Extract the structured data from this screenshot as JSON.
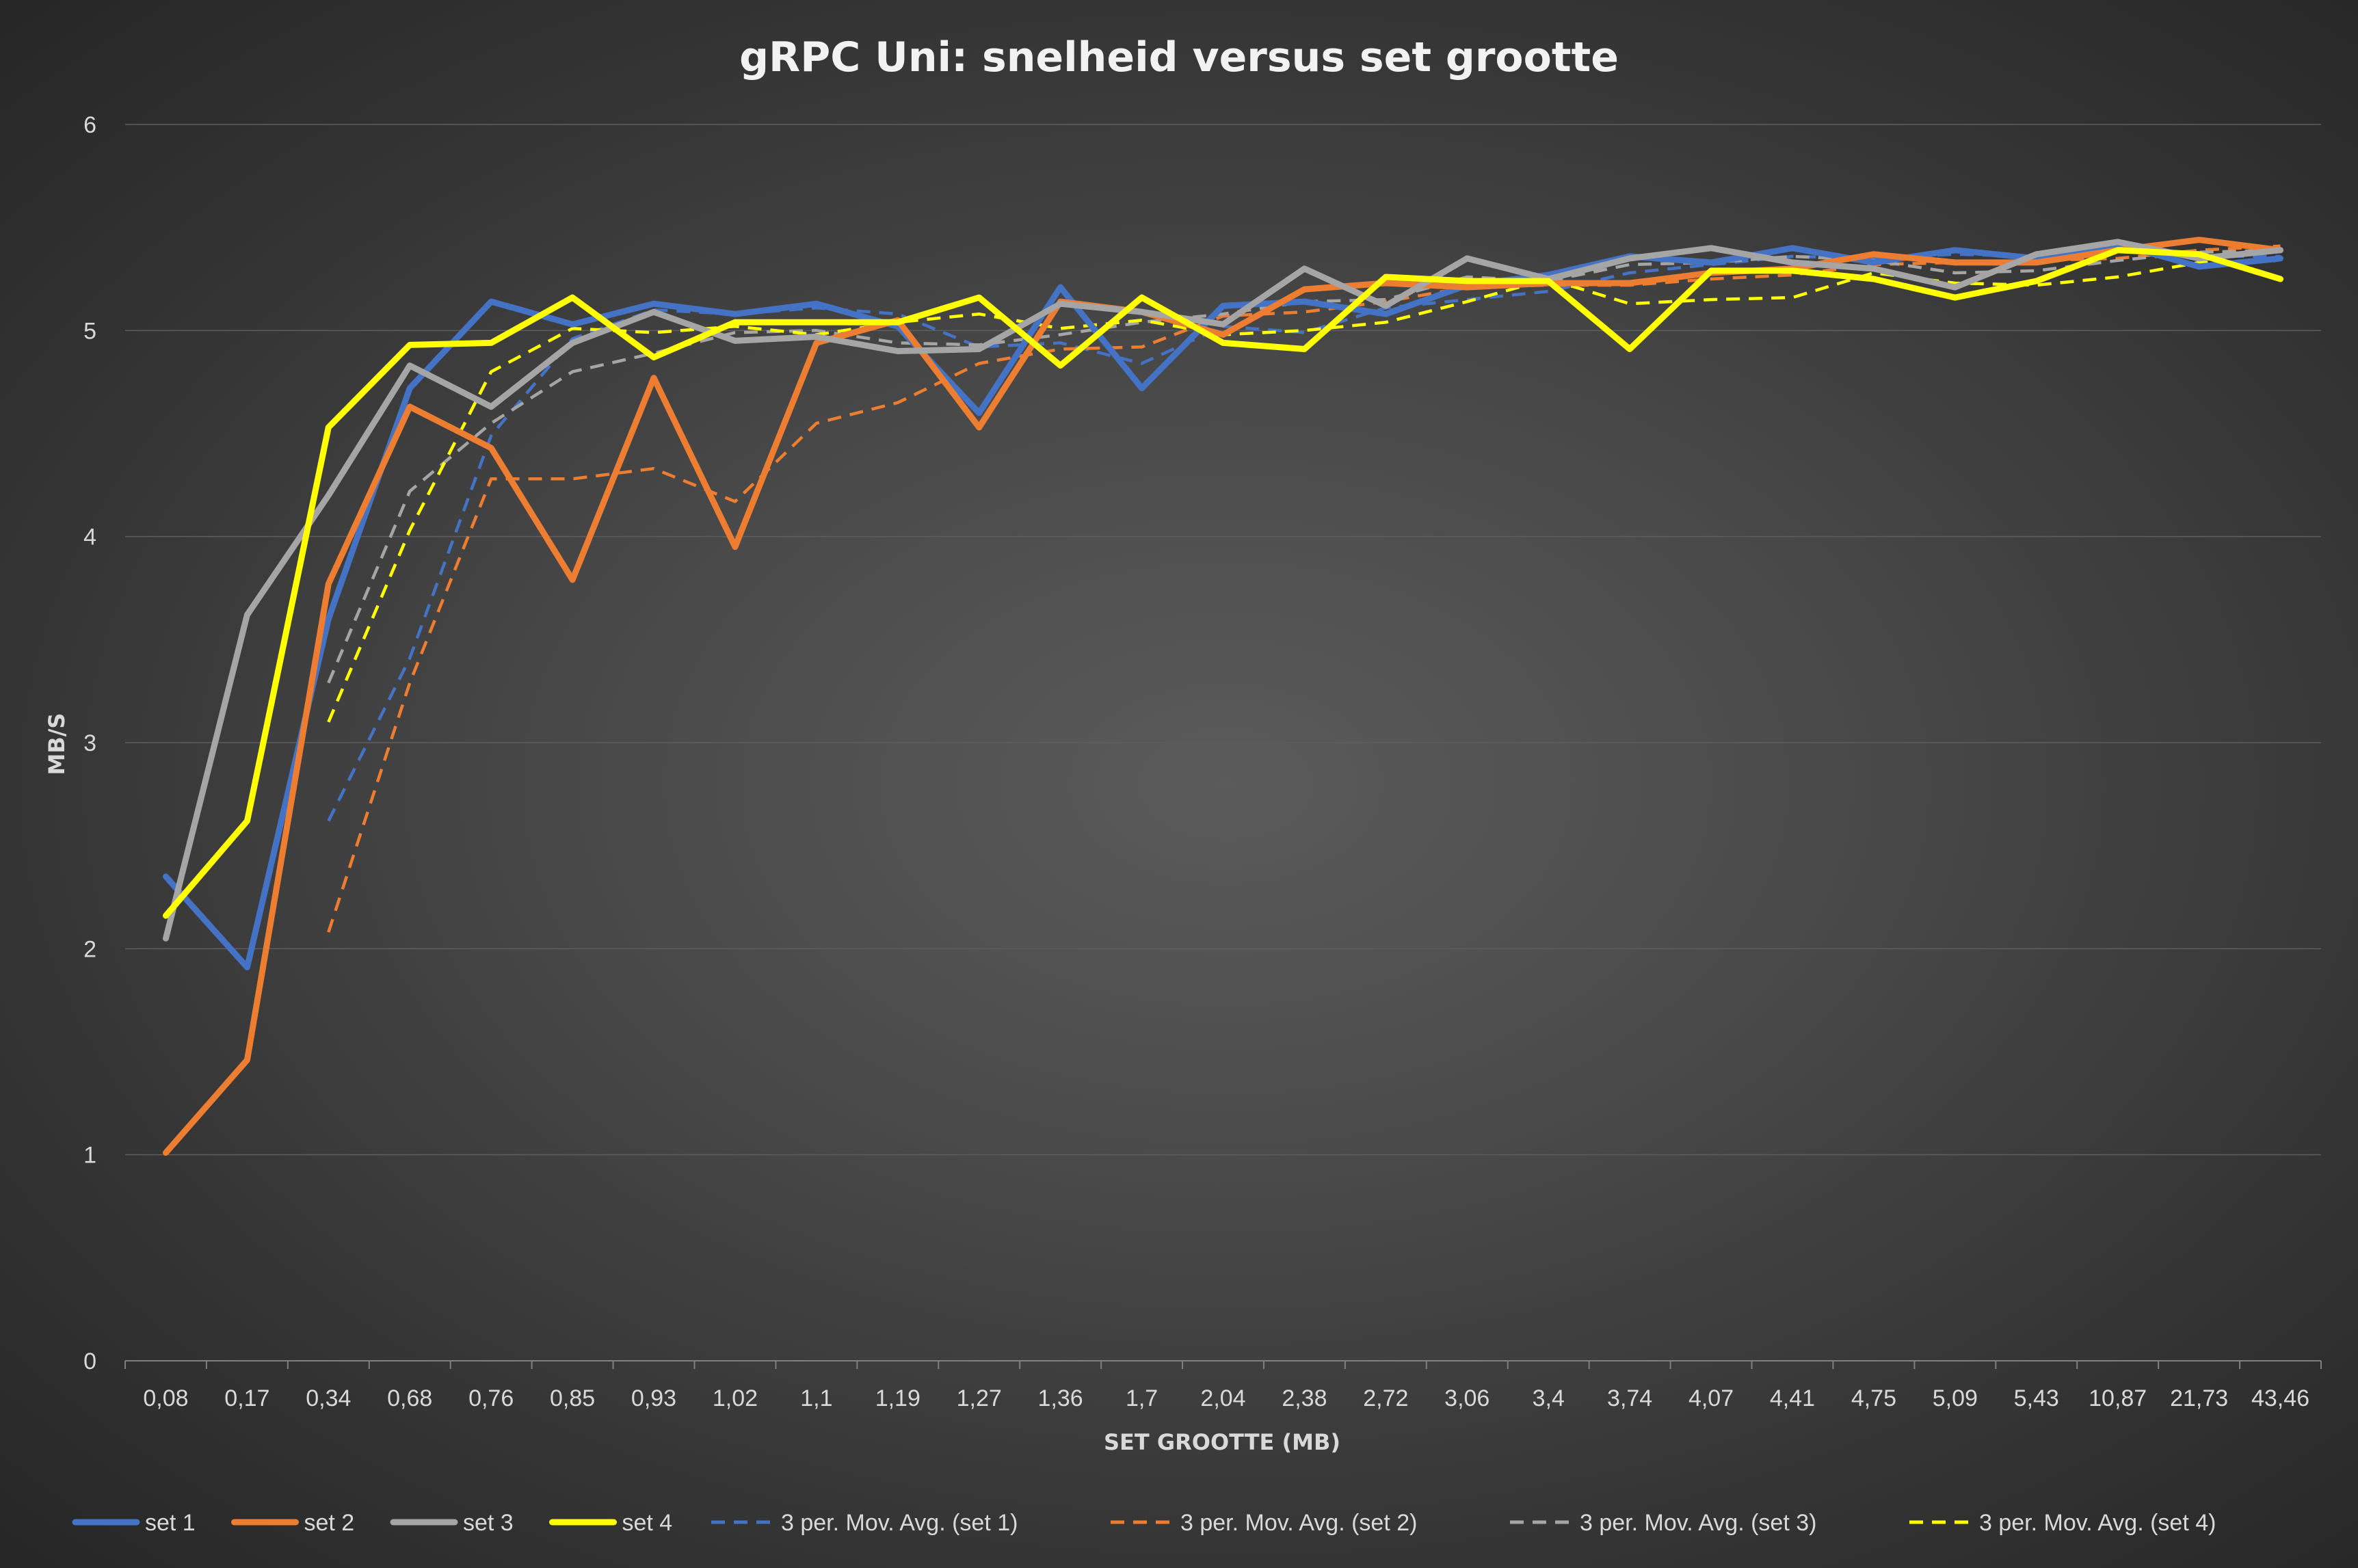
{
  "chart_data": {
    "type": "line",
    "title": "gRPC Uni: snelheid versus set grootte",
    "xlabel": "SET GROOTTE (MB)",
    "ylabel": "MB/S",
    "ylim": [
      0,
      6
    ],
    "yticks": [
      0,
      1,
      2,
      3,
      4,
      5,
      6
    ],
    "grid": true,
    "legend_position": "bottom",
    "categories": [
      "0,08",
      "0,17",
      "0,34",
      "0,68",
      "0,76",
      "0,85",
      "0,93",
      "1,02",
      "1,1",
      "1,19",
      "1,27",
      "1,36",
      "1,7",
      "2,04",
      "2,38",
      "2,72",
      "3,06",
      "3,4",
      "3,74",
      "4,07",
      "4,41",
      "4,75",
      "5,09",
      "5,43",
      "10,87",
      "21,73",
      "43,46"
    ],
    "series": [
      {
        "name": "set 1",
        "color": "#4472c4",
        "style": "solid",
        "values": [
          2.35,
          1.91,
          3.6,
          4.72,
          5.14,
          5.03,
          5.13,
          5.08,
          5.13,
          5.02,
          4.6,
          5.21,
          4.72,
          5.12,
          5.14,
          5.08,
          5.22,
          5.27,
          5.36,
          5.33,
          5.4,
          5.33,
          5.39,
          5.35,
          5.42,
          5.31,
          5.35
        ]
      },
      {
        "name": "set 2",
        "color": "#ed7d31",
        "style": "solid",
        "values": [
          1.01,
          1.46,
          3.77,
          4.63,
          4.43,
          3.79,
          4.77,
          3.95,
          4.94,
          5.05,
          4.53,
          5.14,
          5.09,
          4.98,
          5.2,
          5.23,
          5.21,
          5.23,
          5.23,
          5.28,
          5.3,
          5.37,
          5.33,
          5.33,
          5.39,
          5.44,
          5.39
        ]
      },
      {
        "name": "set 3",
        "color": "#a5a5a5",
        "style": "solid",
        "values": [
          2.05,
          3.62,
          4.2,
          4.83,
          4.63,
          4.94,
          5.09,
          4.95,
          4.97,
          4.9,
          4.91,
          5.13,
          5.09,
          5.03,
          5.3,
          5.12,
          5.35,
          5.25,
          5.35,
          5.4,
          5.33,
          5.3,
          5.21,
          5.37,
          5.43,
          5.35,
          5.39
        ]
      },
      {
        "name": "set 4",
        "color": "#ffff00",
        "style": "solid",
        "values": [
          2.16,
          2.62,
          4.53,
          4.93,
          4.94,
          5.16,
          4.87,
          5.04,
          5.04,
          5.04,
          5.16,
          4.83,
          5.16,
          4.94,
          4.91,
          5.26,
          5.24,
          5.24,
          4.91,
          5.29,
          5.29,
          5.25,
          5.16,
          5.24,
          5.39,
          5.37,
          5.25
        ]
      },
      {
        "name": "3 per. Mov. Avg. (set 1)",
        "color": "#4472c4",
        "style": "dashed",
        "values": [
          null,
          null,
          2.62,
          3.41,
          4.49,
          4.96,
          5.1,
          5.08,
          5.11,
          5.08,
          4.92,
          4.94,
          4.84,
          5.02,
          4.99,
          5.11,
          5.15,
          5.19,
          5.28,
          5.32,
          5.36,
          5.35,
          5.37,
          5.36,
          5.39,
          5.36,
          5.36
        ]
      },
      {
        "name": "3 per. Mov. Avg. (set 2)",
        "color": "#ed7d31",
        "style": "dashed",
        "values": [
          null,
          null,
          2.08,
          3.29,
          4.28,
          4.28,
          4.33,
          4.17,
          4.55,
          4.65,
          4.84,
          4.91,
          4.92,
          5.07,
          5.09,
          5.14,
          5.21,
          5.22,
          5.22,
          5.25,
          5.27,
          5.32,
          5.33,
          5.34,
          5.35,
          5.39,
          5.41
        ]
      },
      {
        "name": "3 per. Mov. Avg. (set 3)",
        "color": "#a5a5a5",
        "style": "dashed",
        "values": [
          null,
          null,
          3.29,
          4.22,
          4.55,
          4.8,
          4.89,
          4.99,
          5.0,
          4.94,
          4.93,
          4.98,
          5.04,
          5.08,
          5.14,
          5.15,
          5.26,
          5.24,
          5.32,
          5.33,
          5.36,
          5.34,
          5.28,
          5.29,
          5.34,
          5.38,
          5.39
        ]
      },
      {
        "name": "3 per. Mov. Avg. (set 4)",
        "color": "#ffff00",
        "style": "dashed",
        "values": [
          null,
          null,
          3.1,
          4.03,
          4.8,
          5.01,
          4.99,
          5.02,
          4.98,
          5.04,
          5.08,
          5.01,
          5.05,
          4.98,
          5.0,
          5.04,
          5.14,
          5.25,
          5.13,
          5.15,
          5.16,
          5.28,
          5.23,
          5.22,
          5.26,
          5.33,
          5.34
        ]
      }
    ]
  }
}
